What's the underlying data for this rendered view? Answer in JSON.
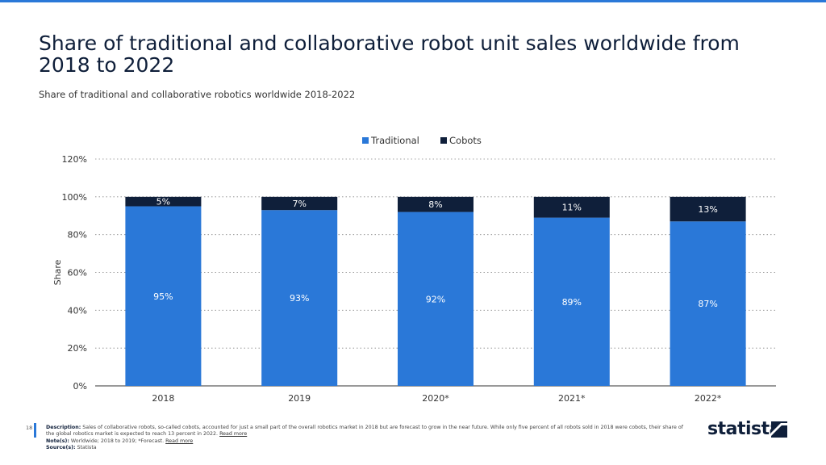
{
  "title": "Share of traditional and collaborative robot unit sales worldwide from 2018 to 2022",
  "subtitle": "Share of traditional and collaborative robotics worldwide 2018-2022",
  "chart_data": {
    "type": "bar",
    "stacked": true,
    "categories": [
      "2018",
      "2019",
      "2020*",
      "2021*",
      "2022*"
    ],
    "series": [
      {
        "name": "Traditional",
        "color": "#2a78d8",
        "values": [
          95,
          93,
          92,
          89,
          87
        ]
      },
      {
        "name": "Cobots",
        "color": "#0f1f3a",
        "values": [
          5,
          7,
          8,
          11,
          13
        ]
      }
    ],
    "ylabel": "Share",
    "xlabel": "",
    "ylim": [
      0,
      120
    ],
    "yticks": [
      "0%",
      "20%",
      "40%",
      "60%",
      "80%",
      "100%",
      "120%"
    ],
    "legend": "top-center",
    "grid": true
  },
  "footer": {
    "page": "18",
    "description_label": "Description:",
    "description": "Sales of collaborative robots, so-called cobots, accounted for just a small part of the overall robotics market in 2018 but are forecast to grow in the near future. While only five percent of all robots sold in 2018 were cobots, their share of the global robotics market is expected to reach 13 percent in 2022.",
    "read_more": "Read more",
    "notes_label": "Note(s):",
    "notes": "Worldwide; 2018 to 2019; *Forecast.",
    "sources_label": "Source(s):",
    "sources": "Statista"
  },
  "logo": "statista"
}
